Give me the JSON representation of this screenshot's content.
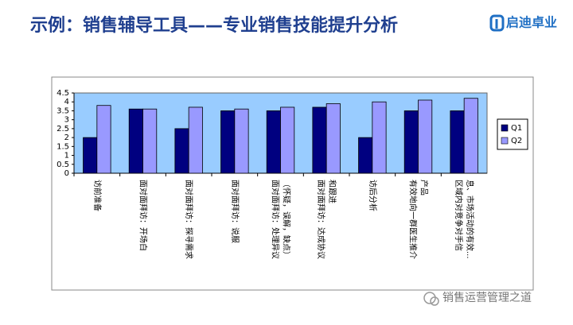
{
  "slide": {
    "title": "示例：销售辅导工具——专业销售技能提升分析",
    "logo": "启迪卓业",
    "watermark": "销售运营管理之道"
  },
  "chart_data": {
    "type": "bar",
    "categories": [
      [
        "访前准备"
      ],
      [
        "面对面拜访：开场白"
      ],
      [
        "面对面拜访：探寻需求"
      ],
      [
        "面对面拜访：说服"
      ],
      [
        "面对面拜访：处理异议",
        "（怀疑，误解，缺点）"
      ],
      [
        "面对面拜访：达成协议",
        "和跟进"
      ],
      [
        "访后分析"
      ],
      [
        "有效地向一群医生推介",
        "产品"
      ],
      [
        "区域内对竞争对手信",
        "息、市场活动的有效..."
      ]
    ],
    "series": [
      {
        "name": "Q1",
        "color": "#000080",
        "values": [
          2,
          3.6,
          2.5,
          3.5,
          3.5,
          3.7,
          2,
          3.5,
          3.5
        ]
      },
      {
        "name": "Q2",
        "color": "#9999ff",
        "values": [
          3.8,
          3.6,
          3.7,
          3.6,
          3.7,
          3.9,
          4,
          4.1,
          4.2
        ]
      }
    ],
    "ylim": [
      0,
      4.5
    ],
    "yticks": [
      0,
      0.5,
      1,
      1.5,
      2,
      2.5,
      3,
      3.5,
      4,
      4.5
    ],
    "grid": false,
    "plot_background": "#99ccff",
    "legend": "right"
  }
}
